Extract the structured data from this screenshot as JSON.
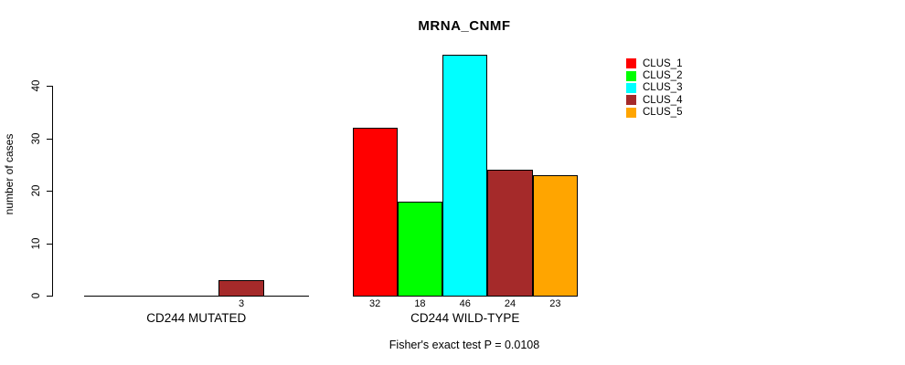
{
  "chart_data": {
    "type": "bar",
    "title": "MRNA_CNMF",
    "ylabel": "number of cases",
    "xlabel": "",
    "ylim": [
      0,
      46
    ],
    "yticks": [
      0,
      10,
      20,
      30,
      40
    ],
    "grid": false,
    "legend_position": "top-right",
    "series": [
      "CLUS_1",
      "CLUS_2",
      "CLUS_3",
      "CLUS_4",
      "CLUS_5"
    ],
    "series_colors": [
      "#FF0000",
      "#00FF00",
      "#00FFFF",
      "#A52A2A",
      "#FFA500"
    ],
    "categories": [
      "CD244 MUTATED",
      "CD244 WILD-TYPE"
    ],
    "groups": [
      {
        "label": "CD244 MUTATED",
        "values": [
          0,
          0,
          0,
          3,
          0
        ],
        "bar_labels": [
          "",
          "",
          "",
          "3",
          ""
        ]
      },
      {
        "label": "CD244 WILD-TYPE",
        "values": [
          32,
          18,
          46,
          24,
          23
        ],
        "bar_labels": [
          "32",
          "18",
          "46",
          "24",
          "23"
        ]
      }
    ],
    "annotation": "Fisher's exact test P = 0.0108"
  }
}
